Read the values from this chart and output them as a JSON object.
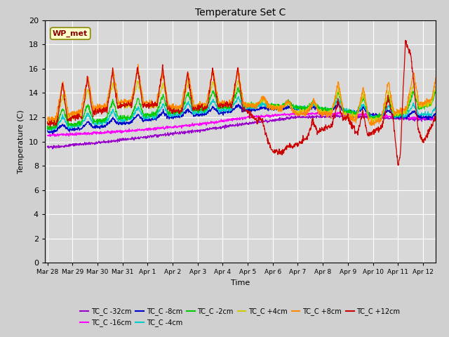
{
  "title": "Temperature Set C",
  "xlabel": "Time",
  "ylabel": "Temperature (C)",
  "ylim": [
    0,
    20
  ],
  "bg_color": "#d8d8d8",
  "plot_bg": "#d8d8d8",
  "wp_met_label": "WP_met",
  "wp_met_bg": "#ffffcc",
  "wp_met_border": "#888800",
  "legend_entries": [
    {
      "label": "TC_C -32cm",
      "color": "#9900cc"
    },
    {
      "label": "TC_C -16cm",
      "color": "#ff00ff"
    },
    {
      "label": "TC_C -8cm",
      "color": "#0000cc"
    },
    {
      "label": "TC_C -4cm",
      "color": "#00cccc"
    },
    {
      "label": "TC_C -2cm",
      "color": "#00cc00"
    },
    {
      "label": "TC_C +4cm",
      "color": "#cccc00"
    },
    {
      "label": "TC_C +8cm",
      "color": "#ff8800"
    },
    {
      "label": "TC_C +12cm",
      "color": "#cc0000"
    }
  ],
  "x_tick_labels": [
    "Mar 28",
    "Mar 29",
    "Mar 30",
    "Mar 31",
    "Apr 1",
    "Apr 2",
    "Apr 3",
    "Apr 4",
    "Apr 5",
    "Apr 6",
    "Apr 7",
    "Apr 8",
    "Apr 9",
    "Apr 10",
    "Apr 11",
    "Apr 12"
  ],
  "x_tick_positions": [
    0,
    1,
    2,
    3,
    4,
    5,
    6,
    7,
    8,
    9,
    10,
    11,
    12,
    13,
    14,
    15
  ]
}
